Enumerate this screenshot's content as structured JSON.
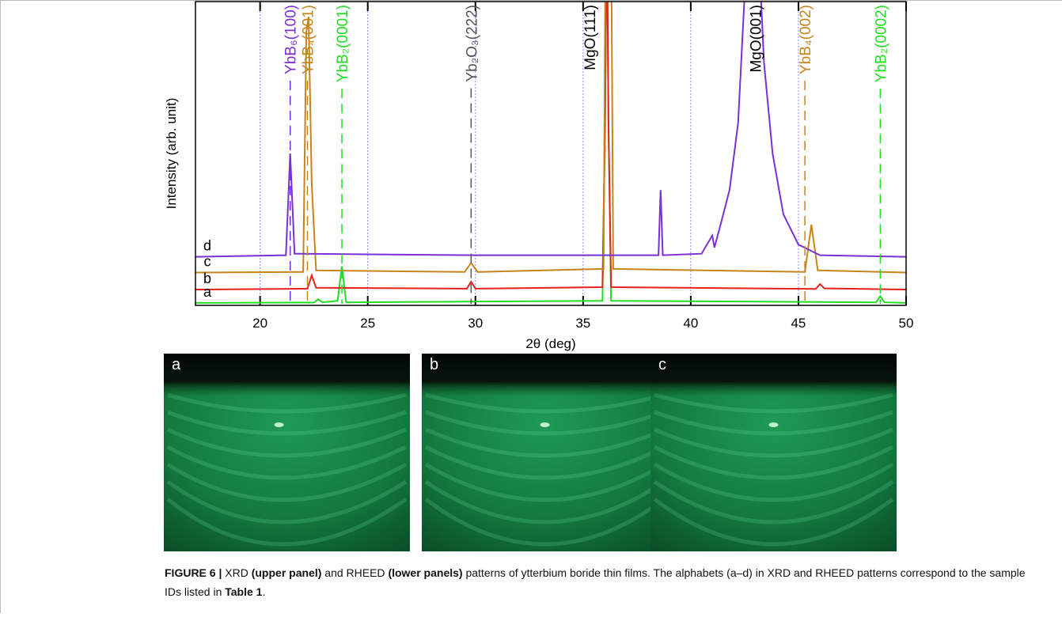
{
  "chart_data": {
    "type": "line",
    "xlabel": "2θ (deg)",
    "ylabel": "Intensity (arb. unit)",
    "xlim": [
      17,
      50
    ],
    "xticks": [
      20,
      25,
      30,
      35,
      40,
      45,
      50
    ],
    "ylim": [
      0,
      100
    ],
    "grid": true,
    "grid_color": "#8a8aff",
    "series": [
      {
        "name": "a",
        "color": "#22dd22",
        "x": [
          17,
          22.5,
          22.7,
          22.9,
          23.6,
          23.8,
          24.0,
          35.9,
          36.02,
          36.1,
          36.18,
          36.3,
          48.6,
          48.8,
          49.0,
          50
        ],
        "values": [
          0.8,
          0.9,
          2,
          1,
          1.5,
          12.8,
          1,
          1.5,
          60,
          130,
          60,
          1.5,
          1,
          3,
          1,
          0.8
        ]
      },
      {
        "name": "b",
        "color": "#e8211d",
        "x": [
          17,
          22.2,
          22.4,
          22.6,
          29.6,
          29.8,
          30.0,
          35.9,
          36.02,
          36.1,
          36.18,
          36.3,
          45.8,
          46.0,
          46.2,
          50
        ],
        "values": [
          5.2,
          5.5,
          9.9,
          5.8,
          5.5,
          7.8,
          5.5,
          6,
          60,
          130,
          60,
          6,
          5.4,
          7,
          5.6,
          5.2
        ]
      },
      {
        "name": "c",
        "color": "#c8841c",
        "x": [
          17,
          22.0,
          22.15,
          22.25,
          22.4,
          22.6,
          29.5,
          29.8,
          30.1,
          35.95,
          36.05,
          36.3,
          36.4,
          45.3,
          45.6,
          45.9,
          50
        ],
        "values": [
          10.8,
          11,
          90,
          95,
          40,
          11.5,
          11,
          14,
          11,
          12,
          130,
          130,
          12,
          11,
          26.6,
          11.5,
          10.8
        ]
      },
      {
        "name": "d",
        "color": "#7b2fd6",
        "x": [
          17,
          21.2,
          21.4,
          21.6,
          30,
          38.5,
          38.6,
          38.7,
          40.5,
          41.0,
          41.1,
          41.4,
          41.8,
          42.2,
          42.5,
          42.7,
          43.2,
          43.4,
          43.8,
          44.3,
          45,
          46,
          50
        ],
        "values": [
          16,
          16.5,
          50,
          17,
          16.5,
          16.5,
          38,
          16.5,
          17,
          23,
          19,
          27,
          38,
          60,
          102,
          110,
          110,
          80,
          50,
          30,
          20,
          16.5,
          16
        ]
      }
    ],
    "annotations": [
      {
        "text": "YbB₆(100)",
        "x": 21.4,
        "color": "#7b2fd6",
        "dashed": true
      },
      {
        "text": "YbB₄(001)",
        "x": 22.2,
        "color": "#c8841c",
        "dashed": true
      },
      {
        "text": "YbB₂(0001)",
        "x": 23.8,
        "color": "#22dd22",
        "dashed": true
      },
      {
        "text": "Yb₂O₃(222)",
        "x": 29.8,
        "color": "#555555",
        "dashed": true
      },
      {
        "text": "MgO(111)",
        "x": 35.3,
        "color": "#000000",
        "dashed": false
      },
      {
        "text": "MgO(001)",
        "x": 43.0,
        "color": "#000000",
        "dashed": false
      },
      {
        "text": "YbB₄(002)",
        "x": 45.3,
        "color": "#c8841c",
        "dashed": true
      },
      {
        "text": "YbB₂(0002)",
        "x": 48.8,
        "color": "#22dd22",
        "dashed": true
      }
    ]
  },
  "rheed": {
    "panels": [
      {
        "label": "a"
      },
      {
        "label": "b"
      },
      {
        "label": "c"
      }
    ]
  },
  "caption": {
    "parts": [
      {
        "text": "FIGURE 6 | ",
        "bold": true
      },
      {
        "text": "XRD ",
        "bold": false
      },
      {
        "text": "(upper panel) ",
        "bold": true
      },
      {
        "text": "and RHEED ",
        "bold": false
      },
      {
        "text": "(lower panels) ",
        "bold": true
      },
      {
        "text": "patterns of ytterbium boride thin films. The alphabets (a–d) in XRD and RHEED patterns correspond to the sample IDs listed in ",
        "bold": false
      },
      {
        "text": "Table 1",
        "bold": true
      },
      {
        "text": ".",
        "bold": false
      }
    ]
  }
}
